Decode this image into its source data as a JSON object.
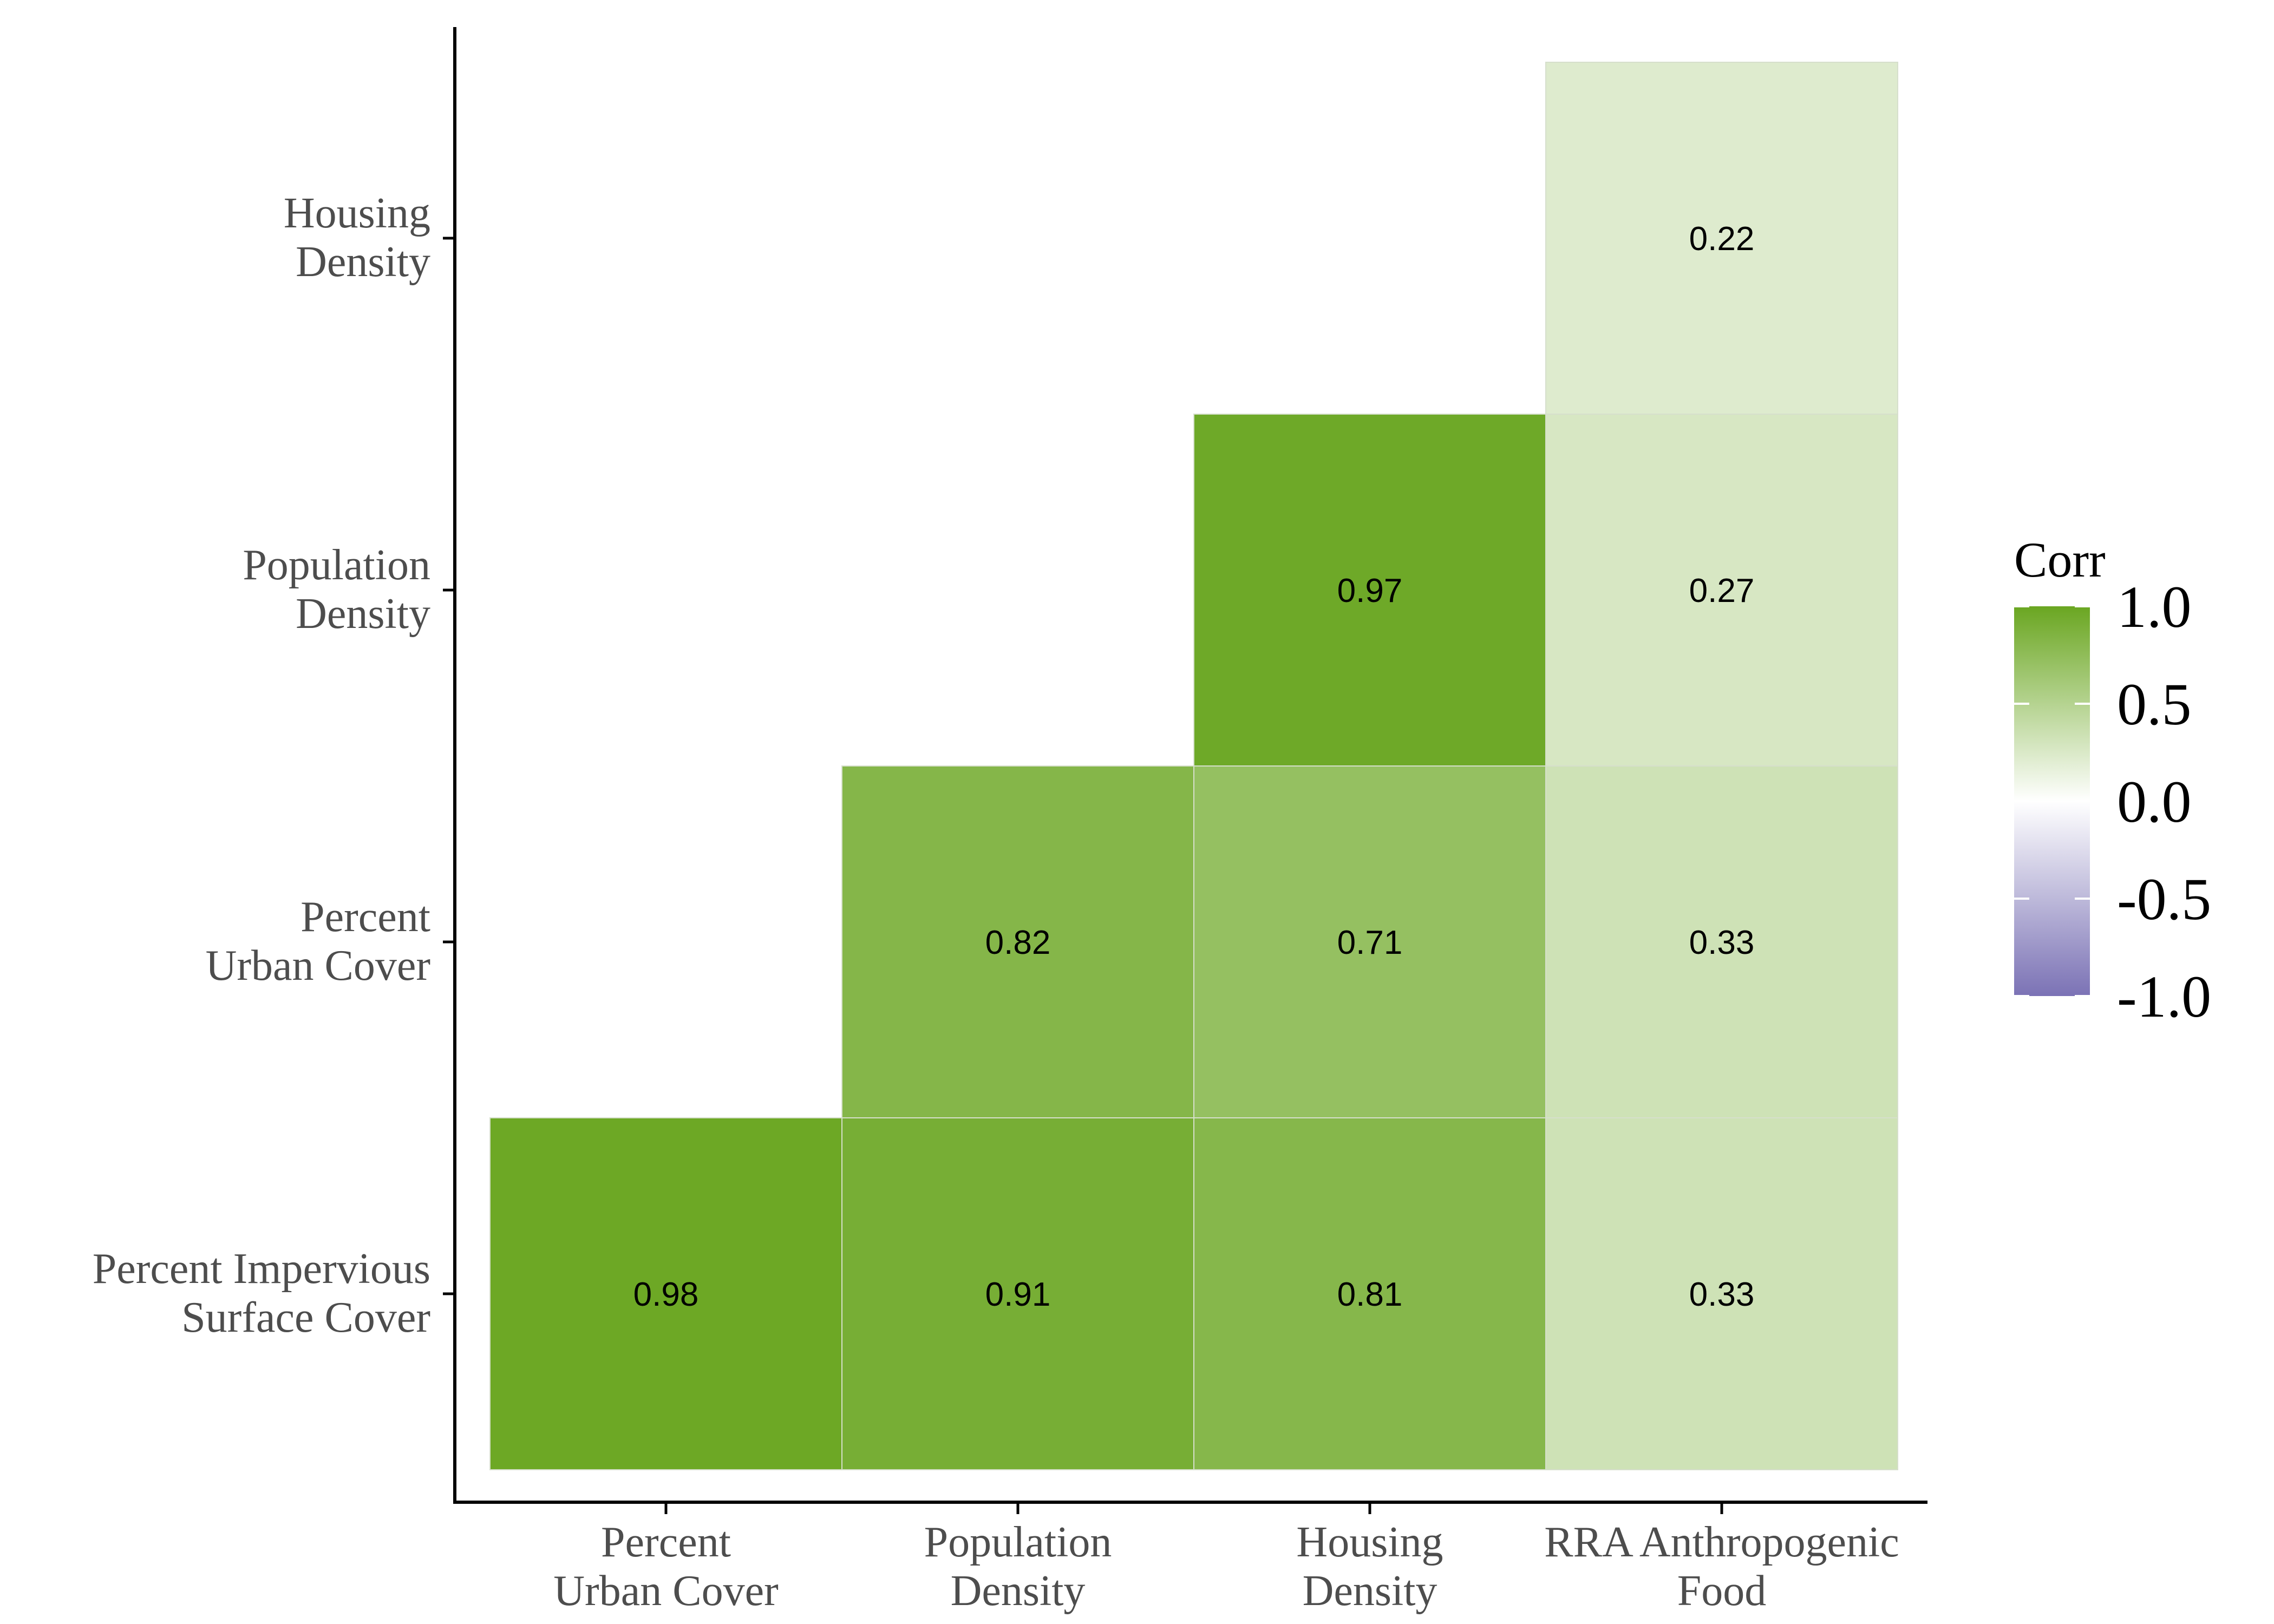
{
  "chart_data": {
    "type": "heatmap",
    "x_categories": [
      "Percent\nUrban Cover",
      "Population\nDensity",
      "Housing\nDensity",
      "RRA Anthropogenic\nFood"
    ],
    "y_categories": [
      "Percent Impervious\nSurface Cover",
      "Percent\nUrban Cover",
      "Population\nDensity",
      "Housing\nDensity"
    ],
    "cells": [
      {
        "x": "Percent\nUrban Cover",
        "y": "Percent Impervious\nSurface Cover",
        "value": 0.98
      },
      {
        "x": "Population\nDensity",
        "y": "Percent Impervious\nSurface Cover",
        "value": 0.91
      },
      {
        "x": "Housing\nDensity",
        "y": "Percent Impervious\nSurface Cover",
        "value": 0.81
      },
      {
        "x": "RRA Anthropogenic\nFood",
        "y": "Percent Impervious\nSurface Cover",
        "value": 0.33
      },
      {
        "x": "Population\nDensity",
        "y": "Percent\nUrban Cover",
        "value": 0.82
      },
      {
        "x": "Housing\nDensity",
        "y": "Percent\nUrban Cover",
        "value": 0.71
      },
      {
        "x": "RRA Anthropogenic\nFood",
        "y": "Percent\nUrban Cover",
        "value": 0.33
      },
      {
        "x": "Housing\nDensity",
        "y": "Population\nDensity",
        "value": 0.97
      },
      {
        "x": "RRA Anthropogenic\nFood",
        "y": "Population\nDensity",
        "value": 0.27
      },
      {
        "x": "RRA Anthropogenic\nFood",
        "y": "Housing\nDensity",
        "value": 0.22
      }
    ],
    "legend": {
      "title": "Corr",
      "placement": "right",
      "range": [
        -1.0,
        1.0
      ],
      "ticks": [
        1.0,
        0.5,
        0.0,
        -0.5,
        -1.0
      ],
      "tick_labels": [
        "1.0",
        "0.5",
        "0.0",
        "-0.5",
        "-1.0"
      ]
    },
    "colors": {
      "low": "#7b72b5",
      "mid": "#ffffff",
      "high": "#6aa621"
    },
    "grid": false
  }
}
